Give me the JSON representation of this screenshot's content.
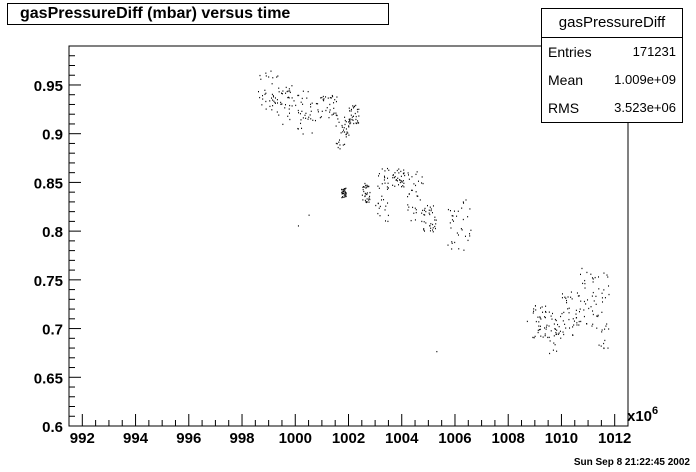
{
  "chart_data": {
    "type": "scatter",
    "title": "gasPressureDiff (mbar) versus time",
    "xlabel": "",
    "ylabel": "",
    "x_multiplier_label": "x10",
    "x_multiplier_exp": "6",
    "xlim": [
      991.5,
      1012.5
    ],
    "ylim": [
      0.6,
      0.99
    ],
    "x_ticks": [
      "992",
      "994",
      "996",
      "998",
      "1000",
      "1002",
      "1004",
      "1006",
      "1008",
      "1010",
      "1012"
    ],
    "y_ticks": [
      "0.6",
      "0.65",
      "0.7",
      "0.75",
      "0.8",
      "0.85",
      "0.9",
      "0.95"
    ],
    "clusters": [
      {
        "x": [
          998.5,
          999.4
        ],
        "y": [
          0.925,
          0.965
        ]
      },
      {
        "x": [
          999.3,
          1000.0
        ],
        "y": [
          0.91,
          0.95
        ]
      },
      {
        "x": [
          1000.0,
          1000.8
        ],
        "y": [
          0.9,
          0.945
        ]
      },
      {
        "x": [
          1000.8,
          1001.6
        ],
        "y": [
          0.915,
          0.94
        ]
      },
      {
        "x": [
          1001.5,
          1002.0
        ],
        "y": [
          0.885,
          0.92
        ]
      },
      {
        "x": [
          1002.0,
          1002.4
        ],
        "y": [
          0.91,
          0.93
        ]
      },
      {
        "x": [
          1001.7,
          1001.9
        ],
        "y": [
          0.835,
          0.845
        ]
      },
      {
        "x": [
          1002.5,
          1002.8
        ],
        "y": [
          0.83,
          0.85
        ]
      },
      {
        "x": [
          1003.0,
          1003.5
        ],
        "y": [
          0.81,
          0.865
        ]
      },
      {
        "x": [
          1003.6,
          1004.1
        ],
        "y": [
          0.845,
          0.865
        ]
      },
      {
        "x": [
          1004.2,
          1004.8
        ],
        "y": [
          0.81,
          0.865
        ]
      },
      {
        "x": [
          1004.8,
          1005.3
        ],
        "y": [
          0.8,
          0.83
        ]
      },
      {
        "x": [
          1005.7,
          1006.6
        ],
        "y": [
          0.78,
          0.835
        ]
      },
      {
        "x": [
          1008.9,
          1009.4
        ],
        "y": [
          0.69,
          0.725
        ]
      },
      {
        "x": [
          1009.4,
          1010.0
        ],
        "y": [
          0.675,
          0.72
        ]
      },
      {
        "x": [
          1010.0,
          1010.6
        ],
        "y": [
          0.69,
          0.74
        ]
      },
      {
        "x": [
          1010.6,
          1011.2
        ],
        "y": [
          0.7,
          0.765
        ]
      },
      {
        "x": [
          1011.2,
          1011.8
        ],
        "y": [
          0.68,
          0.76
        ]
      }
    ],
    "outliers": [
      [
        1000.1,
        0.806
      ],
      [
        1000.5,
        0.817
      ],
      [
        1005.3,
        0.677
      ],
      [
        1008.7,
        0.708
      ],
      [
        1010.1,
        0.705
      ]
    ],
    "grid": false,
    "legend": "none"
  },
  "stats": {
    "name": "gasPressureDiff",
    "rows": [
      {
        "label": "Entries",
        "value": "171231"
      },
      {
        "label": "Mean",
        "value": "1.009e+09"
      },
      {
        "label": "RMS",
        "value": "3.523e+06"
      }
    ]
  },
  "timestamp": "Sun Sep  8 21:22:45 2002",
  "colors": {
    "marker": "#000000",
    "frame": "#000000",
    "background": "#ffffff"
  }
}
